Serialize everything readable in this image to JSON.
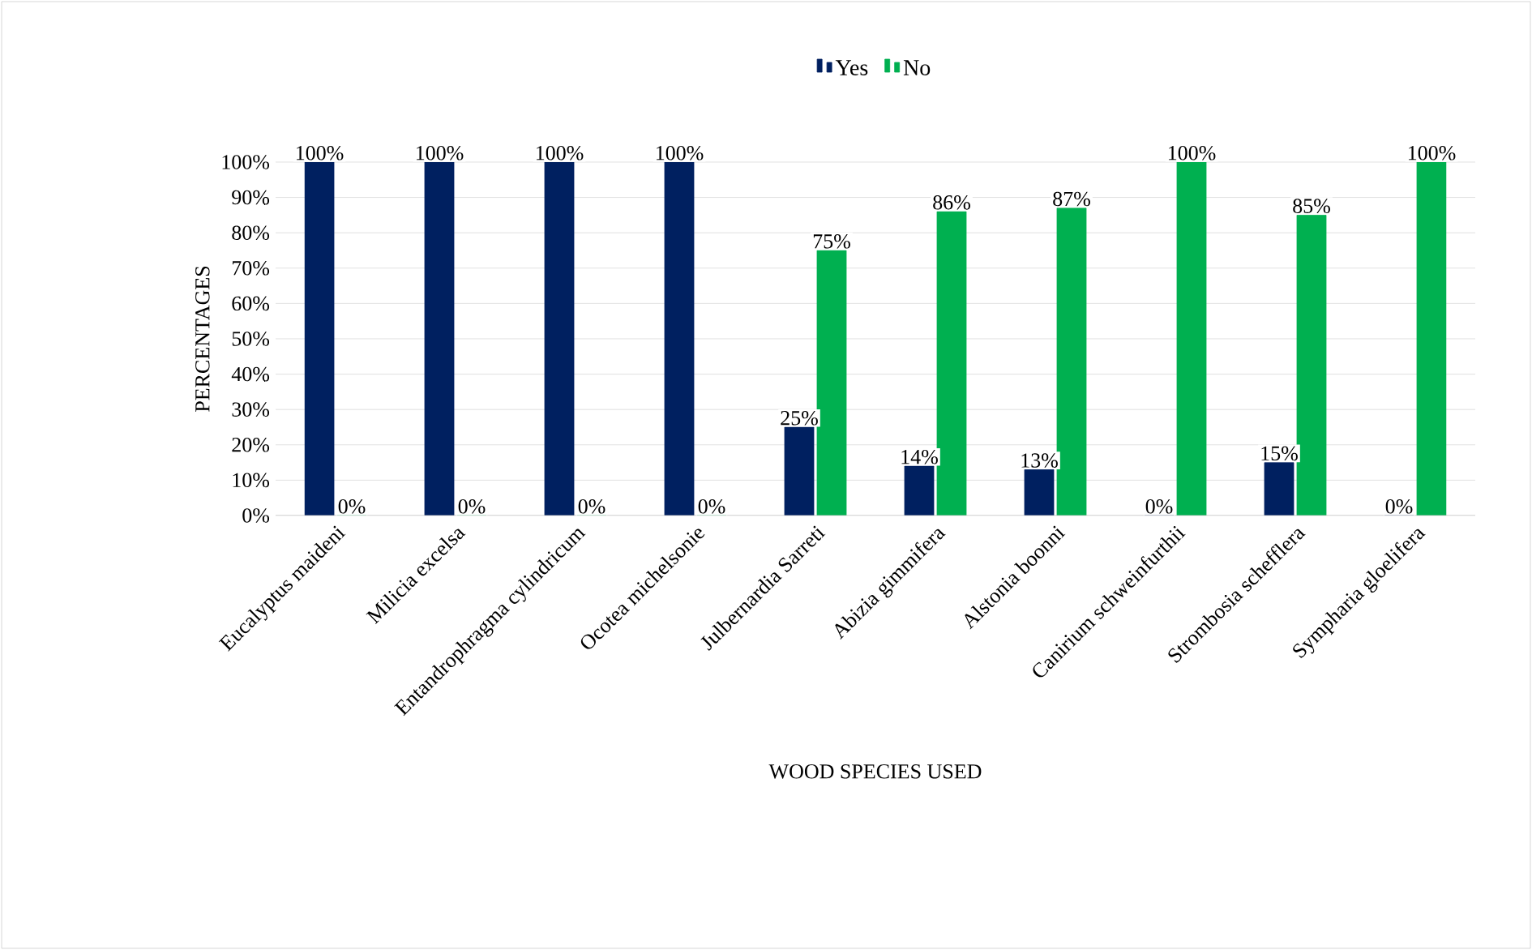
{
  "chart_data": {
    "type": "bar",
    "xlabel": "WOOD SPECIES USED",
    "ylabel": "PERCENTAGES",
    "categories": [
      "Eucalyptus maideni",
      "Milicia excelsa",
      "Entandrophragma cylindricum",
      "Ocotea michelsonie",
      "Julbernardia Sarreti",
      "Abizia gimmifera",
      "Alstonia boonni",
      "Canirium schweinfurthii",
      "Strombosia schefflera",
      "Sympharia gloelifera"
    ],
    "series": [
      {
        "name": "Yes",
        "color": "#002060",
        "values": [
          100,
          100,
          100,
          100,
          25,
          14,
          13,
          0,
          15,
          0
        ],
        "value_labels": [
          "100%",
          "100%",
          "100%",
          "100%",
          "25%",
          "14%",
          "13%",
          "0%",
          "15%",
          "0%"
        ]
      },
      {
        "name": "No",
        "color": "#00b050",
        "values": [
          0,
          0,
          0,
          0,
          75,
          86,
          87,
          100,
          85,
          100
        ],
        "value_labels": [
          "0%",
          "0%",
          "0%",
          "0%",
          "75%",
          "86%",
          "87%",
          "100%",
          "85%",
          "100%"
        ]
      }
    ],
    "ylim": [
      0,
      100
    ],
    "yticks": [
      {
        "value": 0,
        "label": "0%"
      },
      {
        "value": 10,
        "label": "10%"
      },
      {
        "value": 20,
        "label": "20%"
      },
      {
        "value": 30,
        "label": "30%"
      },
      {
        "value": 40,
        "label": "40%"
      },
      {
        "value": 50,
        "label": "50%"
      },
      {
        "value": 60,
        "label": "60%"
      },
      {
        "value": 70,
        "label": "70%"
      },
      {
        "value": 80,
        "label": "80%"
      },
      {
        "value": 90,
        "label": "90%"
      },
      {
        "value": 100,
        "label": "100%"
      }
    ],
    "grid": "y",
    "legend": "top"
  }
}
